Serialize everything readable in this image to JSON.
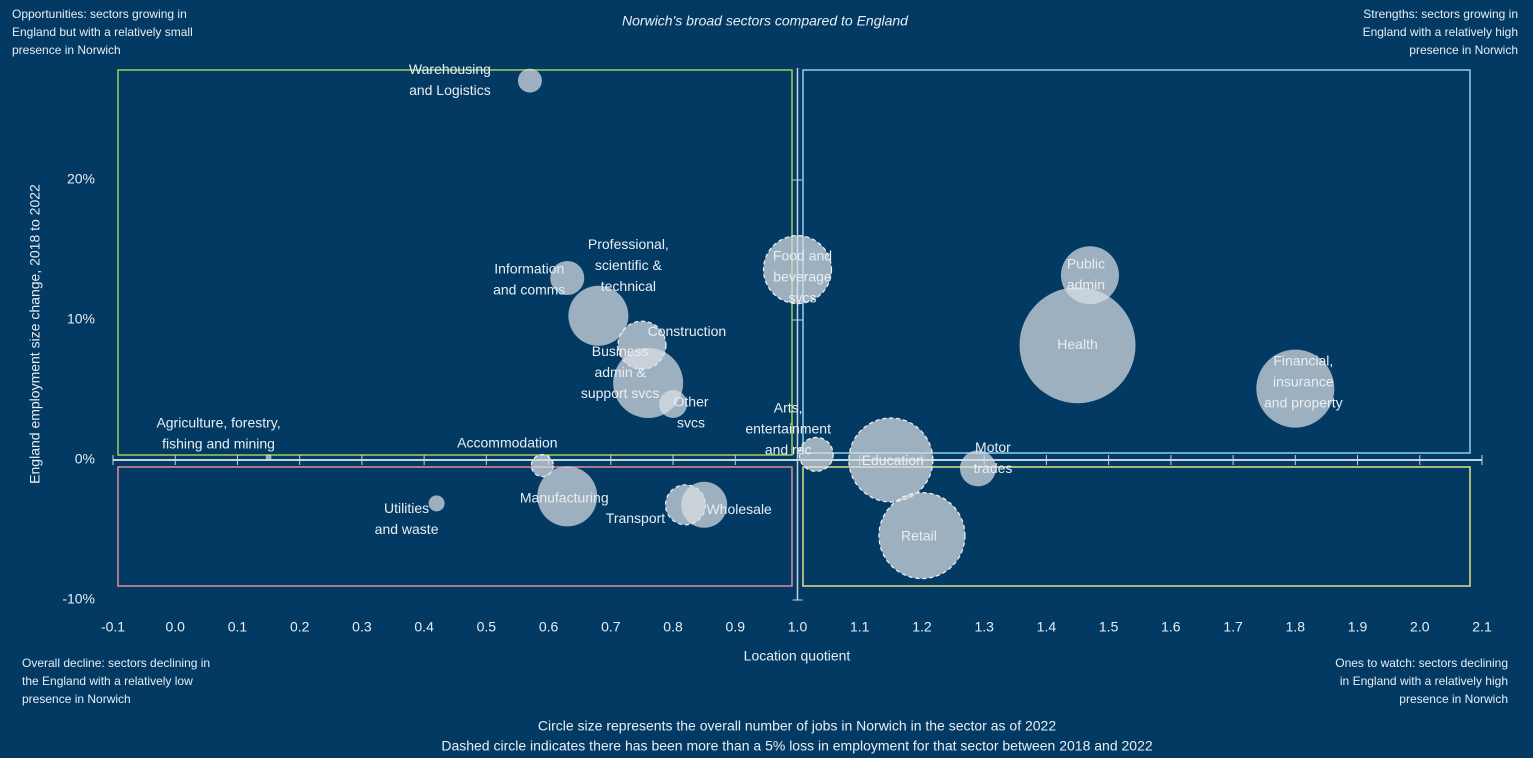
{
  "chart_data": {
    "type": "scatter",
    "title": "Norwich's broad sectors compared to England",
    "x_label": "Location quotient",
    "y_label": "England employment size change, 2018 to 2022",
    "xlim": [
      -0.1,
      2.1
    ],
    "ylim": [
      -10,
      28
    ],
    "xticks": [
      -0.1,
      {
        "value": 0,
        "label": "0.0"
      },
      0.1,
      0.2,
      0.3,
      0.4,
      0.5,
      0.6,
      0.7,
      0.8,
      0.9,
      {
        "value": 1,
        "label": "1.0"
      },
      1.1,
      1.2,
      1.3,
      1.4,
      1.5,
      1.6,
      1.7,
      1.8,
      1.9,
      {
        "value": 2,
        "label": "2.0"
      },
      2.1
    ],
    "yticks": [
      {
        "value": -10,
        "label": "-10%"
      },
      {
        "value": 0,
        "label": "0%"
      },
      {
        "value": 10,
        "label": "10%"
      },
      {
        "value": 20,
        "label": "20%"
      }
    ],
    "labels": [
      [
        "Warehousing",
        "and Logistics"
      ],
      [
        "Information",
        "and comms"
      ],
      [
        "Professional,",
        "scientific &",
        "technical"
      ],
      [
        "Construction"
      ],
      [
        "Business",
        "admin &",
        "support svcs"
      ],
      [
        "Other",
        "svcs"
      ],
      [
        "Food and",
        "beverage",
        "svcs"
      ],
      [
        "Public",
        "admin"
      ],
      [
        "Health"
      ],
      [
        "Financial,",
        "insurance",
        "and property"
      ],
      [
        "Arts,",
        "entertainment",
        "and rec"
      ],
      [
        "Education"
      ],
      [
        "Motor",
        "trades"
      ],
      [
        "Retail"
      ],
      [
        "Agriculture, forestry,",
        "fishing and mining"
      ],
      [
        "Accommodation"
      ],
      [
        "Utilities",
        "and waste"
      ],
      [
        "Manufacturing"
      ],
      [
        "Transport"
      ],
      [
        "Wholesale"
      ]
    ],
    "x": [
      0.57,
      0.63,
      0.68,
      0.75,
      0.76,
      0.8,
      1.0,
      1.47,
      1.45,
      1.8,
      1.03,
      1.15,
      1.29,
      1.2,
      0.15,
      0.59,
      0.42,
      0.63,
      0.82,
      0.85
    ],
    "y": [
      27.1,
      13.0,
      10.3,
      8.2,
      5.5,
      4.0,
      13.6,
      13.2,
      8.2,
      5.1,
      0.4,
      0.0,
      -0.6,
      -5.4,
      0.2,
      -0.4,
      -3.1,
      -2.6,
      -3.2,
      -3.2
    ],
    "sizes": [
      144,
      289,
      900,
      576,
      1225,
      196,
      1156,
      841,
      3364,
      1521,
      289,
      1764,
      324,
      1849,
      9,
      121,
      64,
      900,
      400,
      529
    ],
    "dashed": [
      false,
      false,
      false,
      true,
      false,
      false,
      true,
      false,
      false,
      false,
      true,
      true,
      false,
      true,
      false,
      true,
      false,
      false,
      true,
      false
    ],
    "color": "#d9dee3",
    "quadrant_notes": {
      "top_left": [
        "Opportunities: sectors growing in",
        "England but with a relatively small",
        "presence in Norwich"
      ],
      "top_right": [
        "Strengths: sectors growing in",
        "England with a relatively high",
        "presence in Norwich"
      ],
      "bottom_left": [
        "Overall decline: sectors declining in",
        "the England with a relatively low",
        "presence in Norwich"
      ],
      "bottom_right": [
        "Ones to watch: sectors declining",
        "in England with a relatively high",
        "presence in Norwich"
      ]
    },
    "footnotes": [
      "Circle size represents the overall number of jobs in Norwich in the sector as of 2022",
      "Dashed circle indicates there has been more than a 5% loss in employment for that sector between 2018 and 2022"
    ]
  }
}
